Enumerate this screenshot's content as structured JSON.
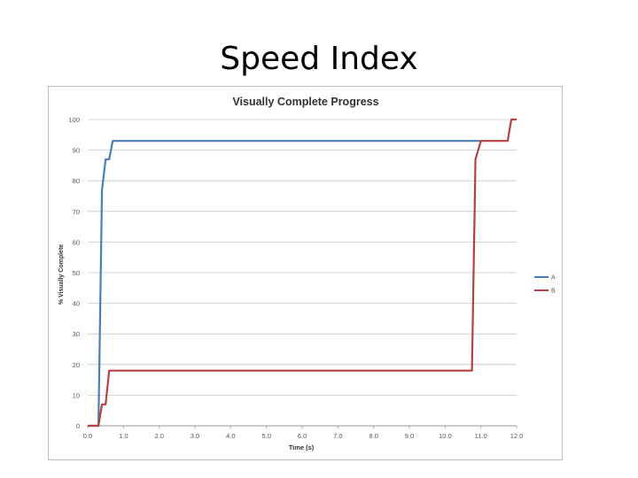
{
  "slide": {
    "title": "Speed Index"
  },
  "chart_data": {
    "type": "line",
    "title": "Visually Complete Progress",
    "xlabel": "Time (s)",
    "ylabel": "% Visually Complete",
    "xlim": [
      0,
      12
    ],
    "ylim": [
      0,
      100
    ],
    "x_ticks": [
      "0.0",
      "1.0",
      "2.0",
      "3.0",
      "4.0",
      "5.0",
      "6.0",
      "7.0",
      "8.0",
      "9.0",
      "10.0",
      "11.0",
      "12.0"
    ],
    "y_ticks": [
      "0",
      "10",
      "20",
      "30",
      "40",
      "50",
      "60",
      "70",
      "80",
      "90",
      "100"
    ],
    "grid": "horizontal",
    "legend": "right",
    "series": [
      {
        "name": "A",
        "color": "#4a7eb5",
        "points": [
          [
            0,
            0
          ],
          [
            0.3,
            0
          ],
          [
            0.4,
            77
          ],
          [
            0.5,
            87
          ],
          [
            0.6,
            87
          ],
          [
            0.7,
            93
          ],
          [
            11.0,
            93
          ]
        ]
      },
      {
        "name": "B",
        "color": "#b5403f",
        "points": [
          [
            0,
            0
          ],
          [
            0.3,
            0
          ],
          [
            0.4,
            7
          ],
          [
            0.5,
            7
          ],
          [
            0.6,
            18
          ],
          [
            10.75,
            18
          ],
          [
            10.85,
            87
          ],
          [
            11.0,
            93
          ],
          [
            11.75,
            93
          ],
          [
            11.85,
            100
          ],
          [
            12.0,
            100
          ]
        ]
      }
    ]
  }
}
